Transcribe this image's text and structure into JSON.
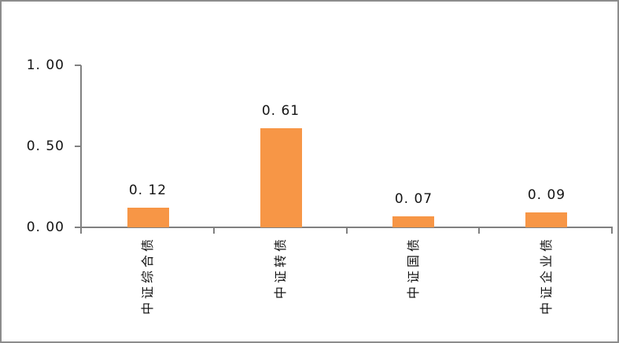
{
  "frame": {
    "background_color": "#FFFFFF",
    "border_color": "#8C8C8C"
  },
  "chart_data": {
    "type": "bar",
    "title": "",
    "categories": [
      "中证综合债",
      "中证转债",
      "中证国债",
      "中证企业债"
    ],
    "values": [
      0.12,
      0.61,
      0.07,
      0.09
    ],
    "value_labels": [
      "0. 12",
      "0. 61",
      "0. 07",
      "0. 09"
    ],
    "xlabel": "",
    "ylabel": "",
    "y_axis": {
      "min": 0,
      "max": 1,
      "tick_values": [
        0,
        0.5,
        1
      ],
      "tick_labels": [
        "0. 00",
        "0. 50",
        "1. 00"
      ]
    },
    "grid": false,
    "legend": false,
    "bar_color": "#F79646",
    "axis_color": "#808080",
    "text_color": "#141414",
    "category_label_rotation_deg": -90
  }
}
